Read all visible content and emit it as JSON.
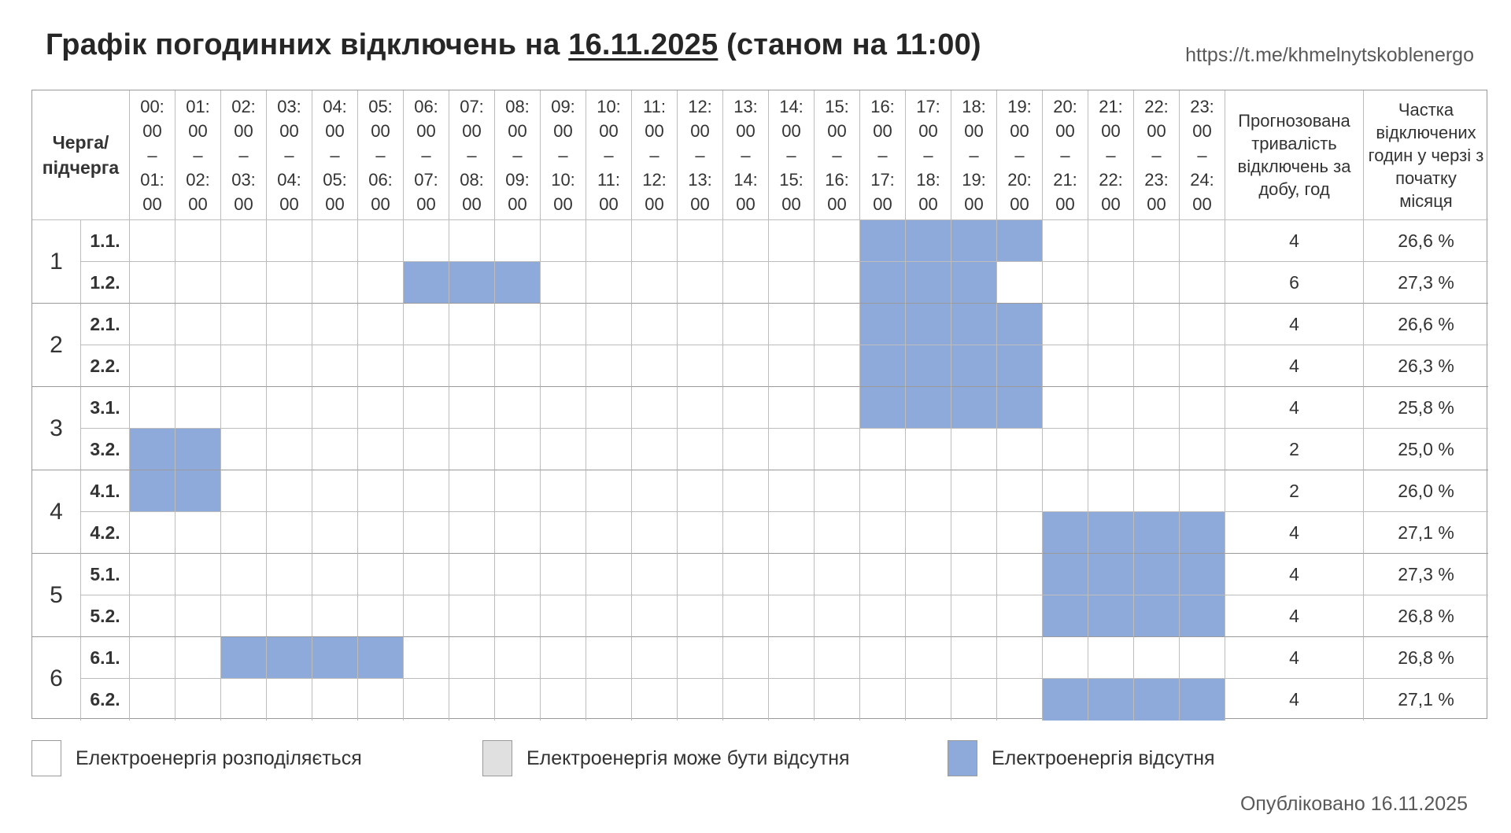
{
  "header": {
    "title_prefix": "Графік погодинних відключень на ",
    "title_date": "16.11.2025",
    "title_suffix": " (станом на 11:00)",
    "channel_link": "https://t.me/khmelnytskoblenergo"
  },
  "table": {
    "queue_header": "Черга/ підчерга",
    "hours": [
      {
        "from": "00:00",
        "to": "01:00"
      },
      {
        "from": "01:00",
        "to": "02:00"
      },
      {
        "from": "02:00",
        "to": "03:00"
      },
      {
        "from": "03:00",
        "to": "04:00"
      },
      {
        "from": "04:00",
        "to": "05:00"
      },
      {
        "from": "05:00",
        "to": "06:00"
      },
      {
        "from": "06:00",
        "to": "07:00"
      },
      {
        "from": "07:00",
        "to": "08:00"
      },
      {
        "from": "08:00",
        "to": "09:00"
      },
      {
        "from": "09:00",
        "to": "10:00"
      },
      {
        "from": "10:00",
        "to": "11:00"
      },
      {
        "from": "11:00",
        "to": "12:00"
      },
      {
        "from": "12:00",
        "to": "13:00"
      },
      {
        "from": "13:00",
        "to": "14:00"
      },
      {
        "from": "14:00",
        "to": "15:00"
      },
      {
        "from": "15:00",
        "to": "16:00"
      },
      {
        "from": "16:00",
        "to": "17:00"
      },
      {
        "from": "17:00",
        "to": "18:00"
      },
      {
        "from": "18:00",
        "to": "19:00"
      },
      {
        "from": "19:00",
        "to": "20:00"
      },
      {
        "from": "20:00",
        "to": "21:00"
      },
      {
        "from": "21:00",
        "to": "22:00"
      },
      {
        "from": "22:00",
        "to": "23:00"
      },
      {
        "from": "23:00",
        "to": "24:00"
      }
    ],
    "duration_header": "Прогнозована тривалість відключень за добу, год",
    "share_header": "Частка відключених годин у черзі з початку місяця",
    "groups": [
      {
        "name": "1",
        "rows": [
          {
            "sub": "1.1.",
            "off_hours": [
              16,
              17,
              18,
              19
            ],
            "duration": "4",
            "share": "26,6 %"
          },
          {
            "sub": "1.2.",
            "off_hours": [
              6,
              7,
              8,
              16,
              17,
              18
            ],
            "duration": "6",
            "share": "27,3 %"
          }
        ]
      },
      {
        "name": "2",
        "rows": [
          {
            "sub": "2.1.",
            "off_hours": [
              16,
              17,
              18,
              19
            ],
            "duration": "4",
            "share": "26,6 %"
          },
          {
            "sub": "2.2.",
            "off_hours": [
              16,
              17,
              18,
              19
            ],
            "duration": "4",
            "share": "26,3 %"
          }
        ]
      },
      {
        "name": "3",
        "rows": [
          {
            "sub": "3.1.",
            "off_hours": [
              16,
              17,
              18,
              19
            ],
            "duration": "4",
            "share": "25,8 %"
          },
          {
            "sub": "3.2.",
            "off_hours": [
              0,
              1
            ],
            "duration": "2",
            "share": "25,0 %"
          }
        ]
      },
      {
        "name": "4",
        "rows": [
          {
            "sub": "4.1.",
            "off_hours": [
              0,
              1
            ],
            "duration": "2",
            "share": "26,0 %"
          },
          {
            "sub": "4.2.",
            "off_hours": [
              20,
              21,
              22,
              23
            ],
            "duration": "4",
            "share": "27,1 %"
          }
        ]
      },
      {
        "name": "5",
        "rows": [
          {
            "sub": "5.1.",
            "off_hours": [
              20,
              21,
              22,
              23
            ],
            "duration": "4",
            "share": "27,3 %"
          },
          {
            "sub": "5.2.",
            "off_hours": [
              20,
              21,
              22,
              23
            ],
            "duration": "4",
            "share": "26,8 %"
          }
        ]
      },
      {
        "name": "6",
        "rows": [
          {
            "sub": "6.1.",
            "off_hours": [
              2,
              3,
              4,
              5
            ],
            "duration": "4",
            "share": "26,8 %"
          },
          {
            "sub": "6.2.",
            "off_hours": [
              20,
              21,
              22,
              23
            ],
            "duration": "4",
            "share": "27,1 %"
          }
        ]
      }
    ]
  },
  "legend": {
    "items": [
      {
        "label": "Електроенергія розподіляється",
        "color": "#ffffff"
      },
      {
        "label": "Електроенергія може бути відсутня",
        "color": "#e0e0e0"
      },
      {
        "label": "Електроенергія відсутня",
        "color": "#8eaadb"
      }
    ]
  },
  "footer": {
    "published": "Опубліковано 16.11.2025"
  }
}
